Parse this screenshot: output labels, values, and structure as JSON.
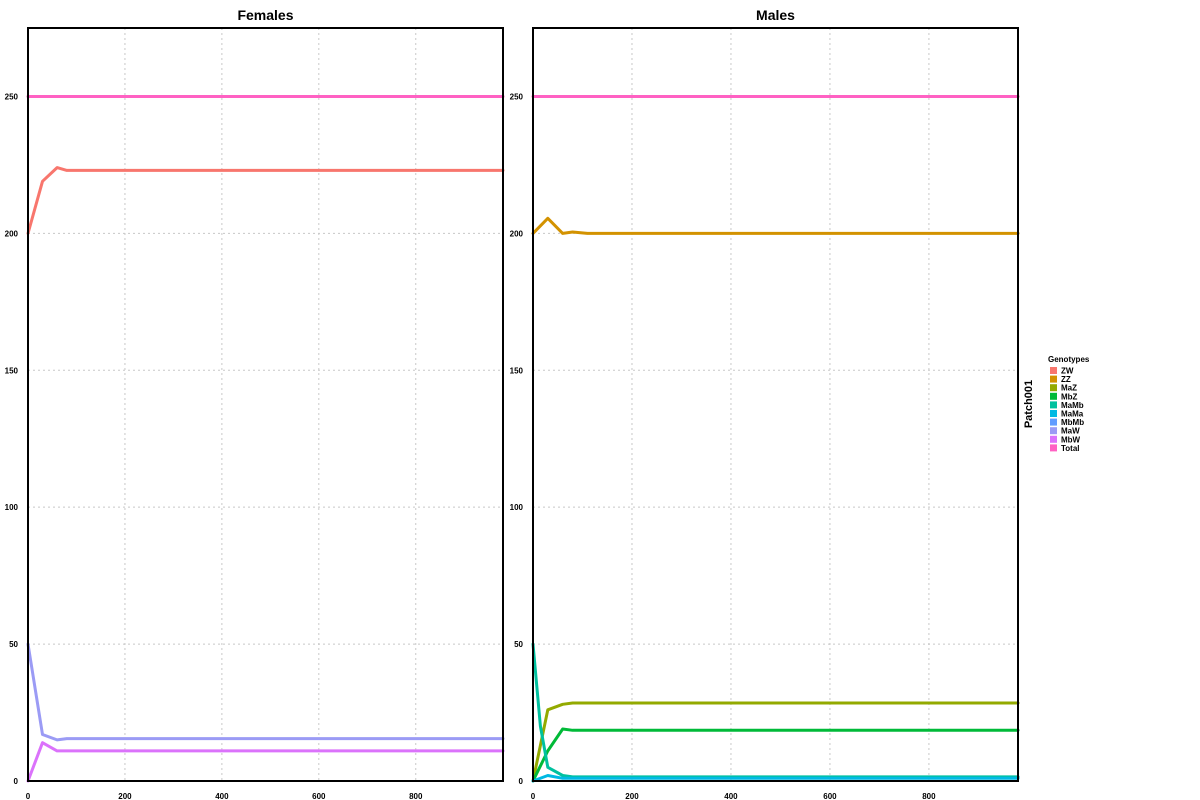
{
  "chart_data": {
    "type": "line",
    "x_ticks": [
      0,
      200,
      400,
      600,
      800
    ],
    "y_ticks": [
      0,
      50,
      100,
      150,
      200,
      250
    ],
    "xlim": [
      0,
      980
    ],
    "ylim": [
      0,
      275
    ],
    "grid": true,
    "legend_placement": "right",
    "strip_label": "Patch001",
    "legend": {
      "title": "Genotypes",
      "entries": [
        {
          "label": "ZW",
          "color": "#F8766D"
        },
        {
          "label": "ZZ",
          "color": "#D39200"
        },
        {
          "label": "MaZ",
          "color": "#93AA00"
        },
        {
          "label": "MbZ",
          "color": "#00BA38"
        },
        {
          "label": "MaMb",
          "color": "#00C19F"
        },
        {
          "label": "MaMa",
          "color": "#00B9E3"
        },
        {
          "label": "MbMb",
          "color": "#619CFF"
        },
        {
          "label": "MaW",
          "color": "#9B9BF5"
        },
        {
          "label": "MbW",
          "color": "#DB72FB"
        },
        {
          "label": "Total",
          "color": "#FF61C3"
        }
      ]
    },
    "panels": [
      {
        "title": "Females",
        "series": [
          {
            "name": "Total",
            "color": "#FF61C3",
            "x": [
              0,
              980
            ],
            "y": [
              250,
              250
            ]
          },
          {
            "name": "ZW",
            "color": "#F8766D",
            "x": [
              0,
              30,
              60,
              80,
              120,
              980
            ],
            "y": [
              200,
              219,
              224,
              223,
              223,
              223
            ]
          },
          {
            "name": "MaW",
            "color": "#9B9BF5",
            "x": [
              0,
              30,
              60,
              80,
              980
            ],
            "y": [
              50,
              17,
              15,
              15.5,
              15.5
            ]
          },
          {
            "name": "MbW",
            "color": "#DB72FB",
            "x": [
              0,
              30,
              60,
              80,
              980
            ],
            "y": [
              0,
              14,
              11,
              11,
              11
            ]
          }
        ]
      },
      {
        "title": "Males",
        "series": [
          {
            "name": "Total",
            "color": "#FF61C3",
            "x": [
              0,
              980
            ],
            "y": [
              250,
              250
            ]
          },
          {
            "name": "ZZ",
            "color": "#D39200",
            "x": [
              0,
              30,
              60,
              80,
              110,
              980
            ],
            "y": [
              200,
              205.5,
              200,
              200.5,
              200,
              200
            ]
          },
          {
            "name": "MaZ",
            "color": "#93AA00",
            "x": [
              0,
              30,
              60,
              80,
              980
            ],
            "y": [
              0,
              26,
              28,
              28.5,
              28.5
            ]
          },
          {
            "name": "MbZ",
            "color": "#00BA38",
            "x": [
              0,
              30,
              60,
              80,
              980
            ],
            "y": [
              0,
              11,
              19,
              18.5,
              18.5
            ]
          },
          {
            "name": "MaMb",
            "color": "#00C19F",
            "x": [
              0,
              15,
              30,
              60,
              80,
              980
            ],
            "y": [
              50,
              20,
              5,
              2,
              1.5,
              1.5
            ]
          },
          {
            "name": "MaMa",
            "color": "#00B9E3",
            "x": [
              0,
              30,
              60,
              980
            ],
            "y": [
              0,
              2,
              1,
              1
            ]
          }
        ]
      }
    ]
  }
}
